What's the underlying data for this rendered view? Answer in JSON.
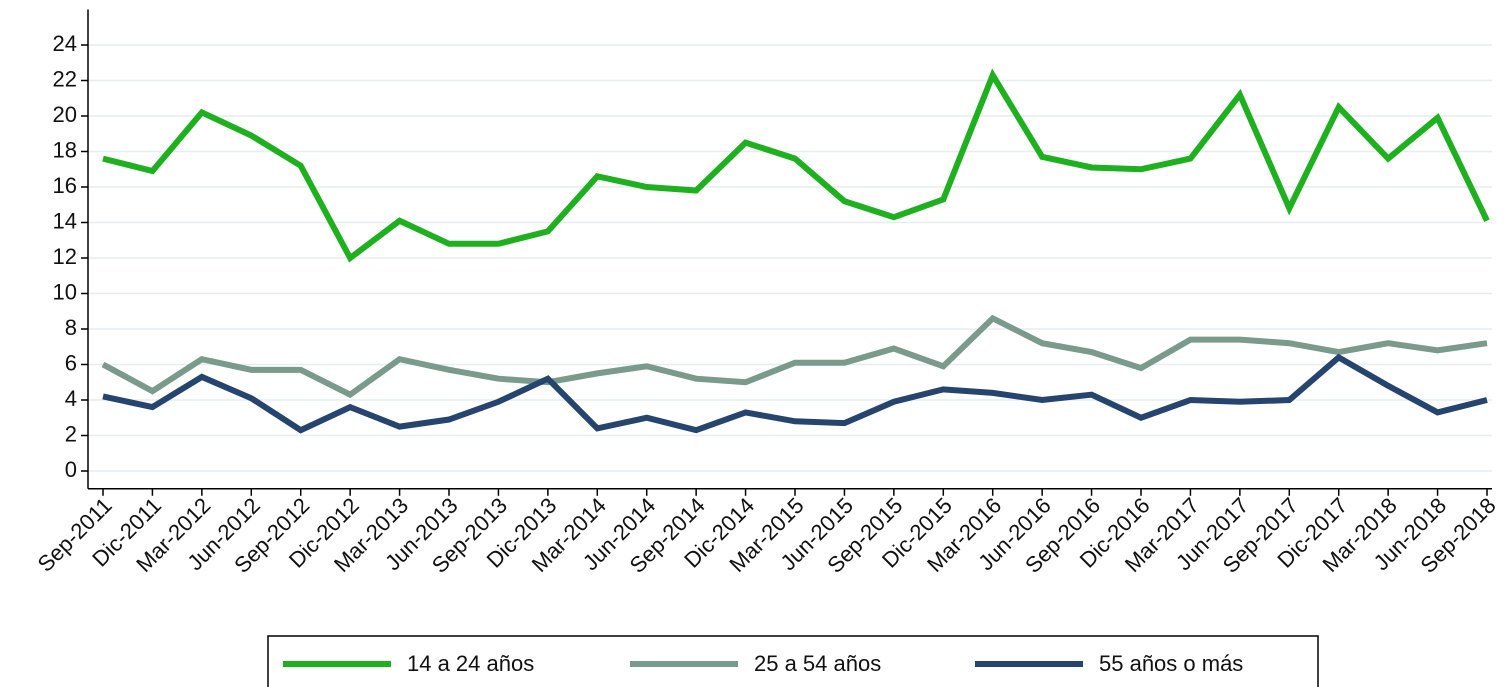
{
  "chart_data": {
    "type": "line",
    "categories": [
      "Sep-2011",
      "Dic-2011",
      "Mar-2012",
      "Jun-2012",
      "Sep-2012",
      "Dic-2012",
      "Mar-2013",
      "Jun-2013",
      "Sep-2013",
      "Dic-2013",
      "Mar-2014",
      "Jun-2014",
      "Sep-2014",
      "Dic-2014",
      "Mar-2015",
      "Jun-2015",
      "Sep-2015",
      "Dic-2015",
      "Mar-2016",
      "Jun-2016",
      "Sep-2016",
      "Dic-2016",
      "Mar-2017",
      "Jun-2017",
      "Sep-2017",
      "Dic-2017",
      "Mar-2018",
      "Jun-2018",
      "Sep-2018"
    ],
    "series": [
      {
        "name": "14 a 24 años",
        "color": "#1fb01f",
        "values": [
          17.6,
          16.9,
          20.2,
          18.9,
          17.2,
          12.0,
          14.1,
          12.8,
          12.8,
          13.5,
          16.6,
          16.0,
          15.8,
          18.5,
          17.6,
          15.2,
          14.3,
          15.3,
          22.3,
          17.7,
          17.1,
          17.0,
          17.6,
          21.2,
          14.8,
          20.5,
          17.6,
          19.9,
          14.1
        ]
      },
      {
        "name": "25 a 54 años",
        "color": "#7a9a8c",
        "values": [
          6.0,
          4.5,
          6.3,
          5.7,
          5.7,
          4.3,
          6.3,
          5.7,
          5.2,
          5.0,
          5.5,
          5.9,
          5.2,
          5.0,
          6.1,
          6.1,
          6.9,
          5.9,
          8.6,
          7.2,
          6.7,
          5.8,
          7.4,
          7.4,
          7.2,
          6.7,
          7.2,
          6.8,
          7.2
        ]
      },
      {
        "name": "55 años o más",
        "color": "#26456e",
        "values": [
          4.2,
          3.6,
          5.3,
          4.1,
          2.3,
          3.6,
          2.5,
          2.9,
          3.9,
          5.2,
          2.4,
          3.0,
          2.3,
          3.3,
          2.8,
          2.7,
          3.9,
          4.6,
          4.4,
          4.0,
          4.3,
          3.0,
          4.0,
          3.9,
          4.0,
          6.4,
          4.8,
          3.3,
          4.0
        ]
      }
    ],
    "ylim": [
      -1,
      26
    ],
    "yticks": [
      0,
      2,
      4,
      6,
      8,
      10,
      12,
      14,
      16,
      18,
      20,
      22,
      24
    ],
    "grid": true,
    "legend": "bottom"
  }
}
